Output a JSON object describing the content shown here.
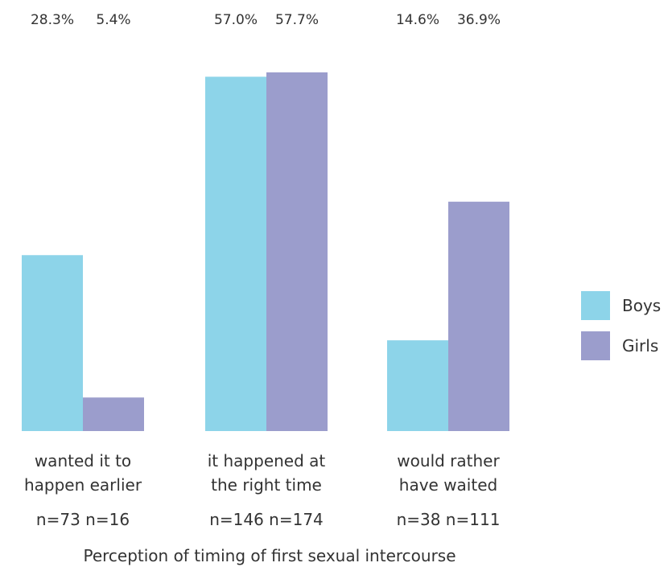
{
  "chart_data": {
    "type": "bar",
    "categories": [
      [
        "wanted it to",
        "happen earlier"
      ],
      [
        "it happened at",
        "the right time"
      ],
      [
        "would rather",
        "have waited"
      ]
    ],
    "series": [
      {
        "name": "Boys",
        "color": "#8dd4e9",
        "values": [
          28.3,
          57.0,
          14.6
        ],
        "labels": [
          "28.3%",
          "57.0%",
          "14.6%"
        ],
        "n": [
          "n=73",
          "n=146",
          "n=38"
        ]
      },
      {
        "name": "Girls",
        "color": "#9b9dcc",
        "values": [
          5.4,
          57.7,
          36.9
        ],
        "labels": [
          "5.4%",
          "57.7%",
          "36.9%"
        ],
        "n": [
          "n=16",
          "n=174",
          "n=111"
        ]
      }
    ],
    "xlabel": "Perception of timing of first sexual intercourse",
    "ylabel": "",
    "ylim": [
      0,
      57.7
    ],
    "grid": false,
    "legend_position": "right"
  }
}
